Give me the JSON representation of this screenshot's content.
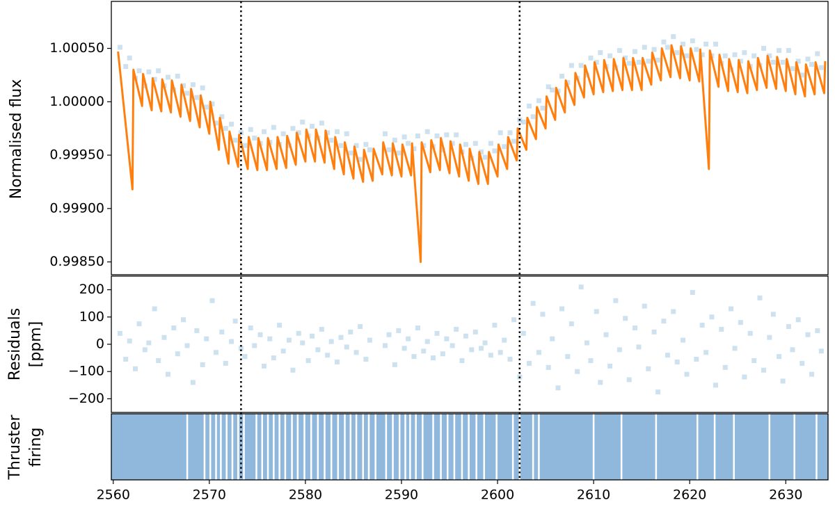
{
  "chart_data": [
    {
      "type": "scatter",
      "ylabel": "Normalised flux",
      "ylim": [
        0.99838,
        1.00094
      ],
      "yticks": [
        {
          "value": 1.0005,
          "label": "1.00050"
        },
        {
          "value": 1.0,
          "label": "1.00000"
        },
        {
          "value": 0.9995,
          "label": "0.99950"
        },
        {
          "value": 0.999,
          "label": "0.99900"
        },
        {
          "value": 0.9985,
          "label": "0.99850"
        }
      ],
      "vlines": [
        2573.3,
        2602.3
      ],
      "series": [
        {
          "type": "scatter",
          "color": "#1f77b4",
          "x": [
            2560.7,
            2561.3,
            2561.7,
            2562.3,
            2562.7,
            2563.3,
            2563.7,
            2564.3,
            2564.7,
            2565.3,
            2565.7,
            2566.3,
            2566.7,
            2567.3,
            2567.7,
            2568.3,
            2568.7,
            2569.3,
            2569.7,
            2570.3,
            2570.7,
            2571.3,
            2571.7,
            2572.3,
            2572.7,
            2573.3,
            2573.7,
            2574.3,
            2574.7,
            2575.3,
            2575.7,
            2576.3,
            2576.7,
            2577.3,
            2577.7,
            2578.3,
            2578.7,
            2579.3,
            2579.7,
            2580.3,
            2580.7,
            2581.3,
            2581.7,
            2582.3,
            2582.7,
            2583.3,
            2583.7,
            2584.3,
            2584.7,
            2585.3,
            2585.7,
            2586.3,
            2586.7,
            2588.3,
            2588.7,
            2589.3,
            2589.7,
            2590.3,
            2590.7,
            2591.3,
            2591.7,
            2592.3,
            2592.7,
            2593.3,
            2593.7,
            2594.3,
            2594.7,
            2595.3,
            2595.7,
            2596.3,
            2596.7,
            2597.3,
            2597.7,
            2598.3,
            2598.7,
            2599.3,
            2599.7,
            2600.3,
            2600.7,
            2601.3,
            2601.7,
            2602.3,
            2602.7,
            2603.3,
            2603.7,
            2604.3,
            2604.7,
            2605.3,
            2605.7,
            2606.3,
            2606.7,
            2607.3,
            2607.7,
            2608.3,
            2608.7,
            2609.3,
            2609.7,
            2610.3,
            2610.7,
            2611.3,
            2611.7,
            2612.3,
            2612.7,
            2613.3,
            2613.7,
            2614.3,
            2614.7,
            2615.3,
            2615.7,
            2616.3,
            2616.7,
            2617.3,
            2617.7,
            2618.3,
            2618.7,
            2619.3,
            2619.7,
            2620.3,
            2620.7,
            2621.3,
            2621.7,
            2622.3,
            2622.7,
            2623.3,
            2623.7,
            2624.3,
            2624.7,
            2625.3,
            2625.7,
            2626.3,
            2626.7,
            2627.3,
            2627.7,
            2628.3,
            2628.7,
            2629.3,
            2629.7,
            2630.3,
            2630.7,
            2631.3,
            2631.7,
            2632.3,
            2632.7,
            2633.3,
            2633.7
          ],
          "values": [
            1.00051,
            1.00033,
            1.00041,
            1.00022,
            1.00029,
            1.00015,
            1.00028,
            1.00021,
            1.00029,
            1.00015,
            1.00023,
            1.00011,
            1.00024,
            1.00015,
            1.00008,
            1.00016,
            1.00004,
            1.00013,
            0.99995,
            0.99998,
            0.9998,
            0.99986,
            0.99975,
            0.99979,
            0.99964,
            0.99971,
            0.99959,
            0.99974,
            0.99966,
            0.99961,
            0.99972,
            0.99962,
            0.99976,
            0.9996,
            0.9997,
            0.99959,
            0.99975,
            0.99971,
            0.99981,
            0.99968,
            0.99977,
            0.99966,
            0.9998,
            0.99971,
            0.99964,
            0.99972,
            0.99959,
            0.9997,
            0.99952,
            0.99959,
            0.99946,
            0.9996,
            0.99955,
            0.9997,
            0.99955,
            0.99964,
            0.99952,
            0.99967,
            0.99961,
            0.99956,
            0.99968,
            0.99959,
            0.99972,
            0.99958,
            0.99968,
            0.99955,
            0.99969,
            0.99961,
            0.99969,
            0.99953,
            0.9996,
            0.99947,
            0.99961,
            0.99953,
            0.99948,
            0.99961,
            0.99954,
            0.99971,
            0.99958,
            0.99971,
            0.99963,
            0.99983,
            0.99981,
            0.99996,
            0.99986,
            1.00001,
            0.99994,
            1.00014,
            1.00011,
            1.0001,
            1.00024,
            1.00018,
            1.00034,
            1.00022,
            1.00034,
            1.00025,
            1.00041,
            1.00037,
            1.00046,
            1.00033,
            1.00043,
            1.00032,
            1.00048,
            1.00041,
            1.00036,
            1.00047,
            1.00037,
            1.00051,
            1.00038,
            1.00049,
            1.00039,
            1.00056,
            1.00051,
            1.00061,
            1.00046,
            1.00054,
            1.00043,
            1.00057,
            1.00049,
            1.00044,
            1.00054,
            1.00043,
            1.00054,
            1.00036,
            1.00043,
            1.0003,
            1.00044,
            1.00038,
            1.00046,
            1.00033,
            1.00043,
            1.00034,
            1.0005,
            1.00043,
            1.00037,
            1.00048,
            1.00037,
            1.00048,
            1.00031,
            1.00038,
            1.00025,
            1.0004,
            1.00035,
            1.00045,
            1.00032
          ]
        },
        {
          "type": "line",
          "color": "#ff7f0e",
          "x": [
            2560.5,
            2562,
            2562.1,
            2563,
            2563.1,
            2564,
            2564.1,
            2565,
            2565.1,
            2566,
            2566.1,
            2567,
            2567.1,
            2568,
            2568.1,
            2569,
            2569.1,
            2570,
            2570.1,
            2571,
            2571.1,
            2572,
            2572.1,
            2573,
            2573.1,
            2574,
            2574.1,
            2575,
            2575.1,
            2576,
            2576.1,
            2577,
            2577.1,
            2578,
            2578.1,
            2579,
            2579.1,
            2580,
            2580.1,
            2581,
            2581.1,
            2582,
            2582.1,
            2583,
            2583.1,
            2584,
            2584.1,
            2585,
            2585.1,
            2586,
            2586.1,
            2587,
            2587.1,
            2588,
            2588.1,
            2589,
            2589.1,
            2590,
            2590.1,
            2591,
            2591.1,
            2592,
            2592.1,
            2593,
            2593.1,
            2594,
            2594.1,
            2595,
            2595.1,
            2596,
            2596.1,
            2597,
            2597.1,
            2598,
            2598.1,
            2599,
            2599.1,
            2600,
            2600.1,
            2601,
            2601.1,
            2602,
            2602.1,
            2603,
            2603.1,
            2604,
            2604.1,
            2605,
            2605.1,
            2606,
            2606.1,
            2607,
            2607.1,
            2608,
            2608.1,
            2609,
            2609.1,
            2610,
            2610.1,
            2611,
            2611.1,
            2612,
            2612.1,
            2613,
            2613.1,
            2614,
            2614.1,
            2615,
            2615.1,
            2616,
            2616.1,
            2617,
            2617.1,
            2618,
            2618.1,
            2619,
            2619.1,
            2620,
            2620.1,
            2621,
            2621.1,
            2622,
            2622.1,
            2623,
            2623.1,
            2624,
            2624.1,
            2625,
            2625.1,
            2626,
            2626.1,
            2627,
            2627.1,
            2628,
            2628.1,
            2629,
            2629.1,
            2630,
            2630.1,
            2631,
            2631.1,
            2632,
            2632.1,
            2633,
            2633.1,
            2634,
            2634.1
          ],
          "values": [
            1.00047,
            0.99918,
            1.0003,
            0.99996,
            1.00026,
            0.99992,
            1.00022,
            0.99991,
            1.00021,
            0.9999,
            1.0002,
            0.99986,
            1.00016,
            0.99982,
            1.00012,
            0.99976,
            1.00006,
            0.9997,
            1.0,
            0.99955,
            0.99985,
            0.99942,
            0.99972,
            0.99939,
            0.99969,
            0.99937,
            0.99967,
            0.99936,
            0.99966,
            0.99936,
            0.99966,
            0.99937,
            0.99967,
            0.99938,
            0.99968,
            0.99941,
            0.99971,
            0.99944,
            0.99974,
            0.99944,
            0.99974,
            0.99943,
            0.99973,
            0.99937,
            0.99967,
            0.99932,
            0.99962,
            0.99928,
            0.99958,
            0.99925,
            0.99955,
            0.99926,
            0.99956,
            0.99932,
            0.99962,
            0.99931,
            0.99961,
            0.9993,
            0.9996,
            0.99931,
            0.99961,
            0.9985,
            0.99962,
            0.99934,
            0.99964,
            0.99936,
            0.99966,
            0.99933,
            0.99963,
            0.9993,
            0.9996,
            0.99926,
            0.99956,
            0.99923,
            0.99953,
            0.99923,
            0.99953,
            0.9993,
            0.9996,
            0.99937,
            0.99967,
            0.99945,
            0.99975,
            0.99955,
            0.99985,
            0.99965,
            0.99995,
            0.99975,
            1.00005,
            0.99983,
            1.00013,
            0.9999,
            1.0002,
            0.99997,
            1.00027,
            1.00004,
            1.00034,
            1.00007,
            1.00037,
            1.00009,
            1.00039,
            1.0001,
            1.0004,
            1.00011,
            1.00041,
            1.00011,
            1.00041,
            1.00011,
            1.00041,
            1.00016,
            1.00046,
            1.0002,
            1.0005,
            1.00023,
            1.00053,
            1.00022,
            1.00052,
            1.0002,
            1.0005,
            1.00019,
            1.00049,
            0.99937,
            1.00048,
            1.00014,
            1.00044,
            1.0001,
            1.0004,
            1.00009,
            1.00039,
            1.00008,
            1.00038,
            1.00011,
            1.00041,
            1.00013,
            1.00043,
            1.00012,
            1.00042,
            1.0001,
            1.0004,
            1.00007,
            1.00037,
            1.00005,
            1.00035,
            1.00007,
            1.00037,
            1.00008,
            1.00038
          ]
        }
      ]
    },
    {
      "type": "scatter",
      "ylabel": [
        "Residuals",
        "[ppm]"
      ],
      "ylim": [
        -250,
        250
      ],
      "yticks": [
        200,
        100,
        0,
        {
          "value": -100,
          "label": "−100"
        },
        {
          "value": -200,
          "label": "−200"
        }
      ],
      "series": [
        {
          "type": "scatter",
          "color": "#1f77b4",
          "x": [
            2560.7,
            2561.3,
            2561.7,
            2562.3,
            2562.7,
            2563.3,
            2563.7,
            2564.3,
            2564.7,
            2565.3,
            2565.7,
            2566.3,
            2566.7,
            2567.3,
            2567.7,
            2568.3,
            2568.7,
            2569.3,
            2569.7,
            2570.3,
            2570.7,
            2571.3,
            2571.7,
            2572.3,
            2572.7,
            2573.3,
            2573.7,
            2574.3,
            2574.7,
            2575.3,
            2575.7,
            2576.3,
            2576.7,
            2577.3,
            2577.7,
            2578.3,
            2578.7,
            2579.3,
            2579.7,
            2580.3,
            2580.7,
            2581.3,
            2581.7,
            2582.3,
            2582.7,
            2583.3,
            2583.7,
            2584.3,
            2584.7,
            2585.3,
            2585.7,
            2586.3,
            2586.7,
            2588.3,
            2588.7,
            2589.3,
            2589.7,
            2590.3,
            2590.7,
            2591.3,
            2591.7,
            2592.3,
            2592.7,
            2593.3,
            2593.7,
            2594.3,
            2594.7,
            2595.3,
            2595.7,
            2596.3,
            2596.7,
            2597.3,
            2597.7,
            2598.3,
            2598.7,
            2599.3,
            2599.7,
            2600.3,
            2600.7,
            2601.3,
            2601.7,
            2602.3,
            2602.7,
            2603.3,
            2603.7,
            2604.3,
            2604.7,
            2605.3,
            2605.7,
            2606.3,
            2606.7,
            2607.3,
            2607.7,
            2608.3,
            2608.7,
            2609.3,
            2609.7,
            2610.3,
            2610.7,
            2611.3,
            2611.7,
            2612.3,
            2612.7,
            2613.3,
            2613.7,
            2614.3,
            2614.7,
            2615.3,
            2615.7,
            2616.3,
            2616.7,
            2617.3,
            2617.7,
            2618.3,
            2618.7,
            2619.3,
            2619.7,
            2620.3,
            2620.7,
            2621.3,
            2621.7,
            2622.3,
            2622.7,
            2623.3,
            2623.7,
            2624.3,
            2624.7,
            2625.3,
            2625.7,
            2626.3,
            2626.7,
            2627.3,
            2627.7,
            2628.3,
            2628.7,
            2629.3,
            2629.7,
            2630.3,
            2630.7,
            2631.3,
            2631.7,
            2632.3,
            2632.7,
            2633.3,
            2633.7
          ],
          "values": [
            40,
            -55,
            12,
            -90,
            75,
            -20,
            5,
            130,
            -60,
            25,
            -110,
            60,
            -35,
            90,
            -5,
            -140,
            50,
            -75,
            20,
            160,
            -30,
            45,
            -70,
            10,
            85,
            -15,
            -45,
            60,
            -5,
            35,
            -80,
            20,
            -50,
            70,
            -25,
            15,
            -95,
            40,
            5,
            -60,
            30,
            -20,
            55,
            -40,
            10,
            -65,
            25,
            -10,
            45,
            -30,
            65,
            -55,
            15,
            -5,
            35,
            -75,
            50,
            -15,
            20,
            -45,
            60,
            -25,
            10,
            -50,
            40,
            -35,
            20,
            -5,
            55,
            -60,
            30,
            -20,
            45,
            -15,
            5,
            -40,
            70,
            -30,
            15,
            -55,
            90,
            -120,
            40,
            -70,
            150,
            -30,
            110,
            -85,
            20,
            -160,
            130,
            -45,
            75,
            -100,
            210,
            5,
            -60,
            120,
            -140,
            35,
            -80,
            160,
            -20,
            95,
            -130,
            60,
            -10,
            140,
            -90,
            45,
            -175,
            85,
            -40,
            120,
            -65,
            15,
            -110,
            190,
            -55,
            70,
            -30,
            100,
            -150,
            55,
            -85,
            130,
            -15,
            80,
            -120,
            40,
            -60,
            170,
            -95,
            25,
            110,
            -45,
            -135,
            65,
            -20,
            90,
            -70,
            35,
            -110,
            50,
            -25
          ]
        }
      ]
    },
    {
      "type": "events",
      "ylabel": [
        "Thruster",
        "firing"
      ],
      "color": "#8fb8dc",
      "xlim": [
        2559.8,
        2634.4
      ],
      "xticks": [
        2560,
        2570,
        2580,
        2590,
        2600,
        2610,
        2620,
        2630
      ],
      "x": [
        2567.7,
        2569.5,
        2570.1,
        2570.7,
        2571.2,
        2571.8,
        2572.4,
        2573.0,
        2573.6,
        2574.9,
        2575.5,
        2576.1,
        2576.7,
        2577.3,
        2577.9,
        2578.6,
        2579.2,
        2579.9,
        2580.6,
        2581.3,
        2582.0,
        2582.7,
        2583.4,
        2584.1,
        2584.7,
        2585.3,
        2586.0,
        2586.6,
        2587.3,
        2588.4,
        2589.1,
        2589.8,
        2590.4,
        2590.9,
        2591.5,
        2592.2,
        2593.3,
        2594.1,
        2594.8,
        2595.5,
        2596.3,
        2597.0,
        2597.8,
        2598.6,
        2599.9,
        2601.6,
        2602.3,
        2603.7,
        2604.3,
        2610.0,
        2612.9,
        2616.5,
        2620.8,
        2622.6,
        2624.6,
        2628.3,
        2630.9,
        2633.2
      ]
    }
  ]
}
